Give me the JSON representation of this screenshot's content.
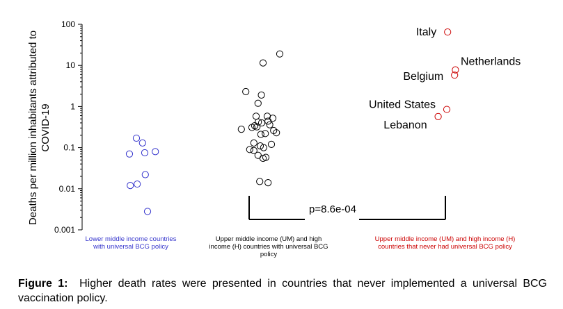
{
  "chart_data": {
    "type": "scatter",
    "ylabel": "Deaths per million inhabitants attributed to COVID-19",
    "yscale": "log",
    "ylim": [
      0.001,
      100
    ],
    "yticks": [
      {
        "value": 100,
        "label": "100"
      },
      {
        "value": 10,
        "label": "10"
      },
      {
        "value": 1,
        "label": "1"
      },
      {
        "value": 0.1,
        "label": "0.1"
      },
      {
        "value": 0.01,
        "label": "0.01"
      },
      {
        "value": 0.001,
        "label": "0.001"
      }
    ],
    "categories": [
      "Lower middle income countries with universal BCG policy",
      "Upper middle income (UM)  and high income (H) countries with universal BCG policy",
      "Upper middle income (UM)  and high income (H) countries that never had universal BCG policy"
    ],
    "category_colors": [
      "#3333cc",
      "#000000",
      "#cc0000"
    ],
    "series": [
      {
        "name": "Lower middle income countries with universal BCG policy",
        "color": "#3333cc",
        "points": [
          {
            "jitter": -0.35,
            "y": 0.07
          },
          {
            "jitter": -0.1,
            "y": 0.17
          },
          {
            "jitter": 0.12,
            "y": 0.13
          },
          {
            "jitter": 0.2,
            "y": 0.075
          },
          {
            "jitter": 0.58,
            "y": 0.08
          },
          {
            "jitter": -0.32,
            "y": 0.012
          },
          {
            "jitter": -0.07,
            "y": 0.013
          },
          {
            "jitter": 0.22,
            "y": 0.022
          },
          {
            "jitter": 0.3,
            "y": 0.0028
          }
        ]
      },
      {
        "name": "Upper middle income (UM)  and high income (H) countries with universal BCG policy",
        "color": "#000000",
        "points": [
          {
            "jitter": 0.6,
            "y": 19
          },
          {
            "jitter": 0.0,
            "y": 11.5
          },
          {
            "jitter": -0.62,
            "y": 2.3
          },
          {
            "jitter": -0.06,
            "y": 1.9
          },
          {
            "jitter": -0.18,
            "y": 1.2
          },
          {
            "jitter": -0.25,
            "y": 0.58
          },
          {
            "jitter": 0.15,
            "y": 0.58
          },
          {
            "jitter": 0.35,
            "y": 0.52
          },
          {
            "jitter": -0.17,
            "y": 0.42
          },
          {
            "jitter": -0.05,
            "y": 0.4
          },
          {
            "jitter": 0.18,
            "y": 0.44
          },
          {
            "jitter": 0.24,
            "y": 0.36
          },
          {
            "jitter": -0.3,
            "y": 0.34
          },
          {
            "jitter": -0.22,
            "y": 0.32
          },
          {
            "jitter": -0.4,
            "y": 0.31
          },
          {
            "jitter": -0.78,
            "y": 0.28
          },
          {
            "jitter": 0.08,
            "y": 0.22
          },
          {
            "jitter": 0.38,
            "y": 0.26
          },
          {
            "jitter": 0.48,
            "y": 0.23
          },
          {
            "jitter": -0.08,
            "y": 0.21
          },
          {
            "jitter": -0.33,
            "y": 0.13
          },
          {
            "jitter": -0.1,
            "y": 0.11
          },
          {
            "jitter": 0.02,
            "y": 0.1
          },
          {
            "jitter": -0.48,
            "y": 0.09
          },
          {
            "jitter": -0.33,
            "y": 0.085
          },
          {
            "jitter": 0.3,
            "y": 0.12
          },
          {
            "jitter": -0.18,
            "y": 0.065
          },
          {
            "jitter": 0.0,
            "y": 0.055
          },
          {
            "jitter": 0.1,
            "y": 0.058
          },
          {
            "jitter": -0.12,
            "y": 0.015
          },
          {
            "jitter": 0.18,
            "y": 0.014
          }
        ]
      },
      {
        "name": "Upper middle income (UM)  and high income (H) countries that never had universal BCG policy",
        "color": "#cc0000",
        "points": [
          {
            "jitter": 0.08,
            "y": 65,
            "label": "Italy"
          },
          {
            "jitter": 0.36,
            "y": 7.8,
            "label": "Netherlands"
          },
          {
            "jitter": 0.33,
            "y": 5.8,
            "label": "Belgium"
          },
          {
            "jitter": 0.05,
            "y": 0.85,
            "label": "United States"
          },
          {
            "jitter": -0.26,
            "y": 0.57,
            "label": "Lebanon"
          }
        ]
      }
    ],
    "annotations": [
      {
        "text": "p=8.6e-04",
        "between": [
          1,
          2
        ]
      }
    ]
  },
  "caption": {
    "label": "Figure 1",
    "text": "Higher death rates were presented in countries that never implemented a universal BCG vaccination policy."
  }
}
